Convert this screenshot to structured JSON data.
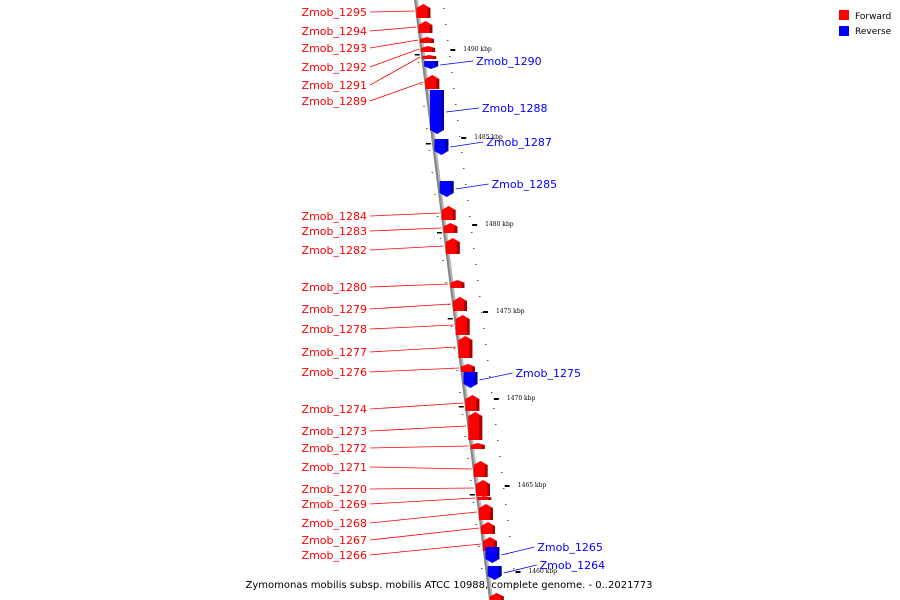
{
  "caption": "Zymomonas mobilis subsp. mobilis ATCC 10988, complete genome. - 0..2021773",
  "legend": {
    "forward_label": "Forward",
    "reverse_label": "Reverse",
    "forward_color": "#ff0000",
    "reverse_color": "#0000ff"
  },
  "ticks": [
    "1490 kbp",
    "1485 kbp",
    "1480 kbp",
    "1475 kbp",
    "1470 kbp",
    "1465 kbp",
    "1460 kbp"
  ],
  "genes": {
    "forward": [
      "Zmob_1295",
      "Zmob_1294",
      "Zmob_1293",
      "Zmob_1292",
      "Zmob_1291",
      "Zmob_1289",
      "Zmob_1284",
      "Zmob_1283",
      "Zmob_1282",
      "Zmob_1280",
      "Zmob_1279",
      "Zmob_1278",
      "Zmob_1277",
      "Zmob_1276",
      "Zmob_1274",
      "Zmob_1273",
      "Zmob_1272",
      "Zmob_1271",
      "Zmob_1270",
      "Zmob_1269",
      "Zmob_1268",
      "Zmob_1267",
      "Zmob_1266"
    ],
    "reverse": [
      "Zmob_1290",
      "Zmob_1288",
      "Zmob_1287",
      "Zmob_1285",
      "Zmob_1275",
      "Zmob_1265",
      "Zmob_1264"
    ]
  }
}
